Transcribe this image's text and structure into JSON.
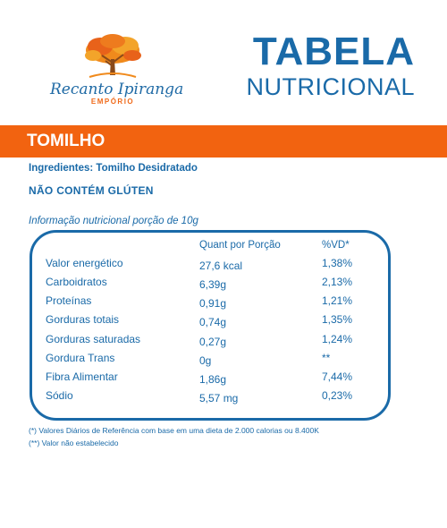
{
  "brand": {
    "name": "Recanto Ipiranga",
    "sub": "EMPÓRIO"
  },
  "header": {
    "title_line1": "TABELA",
    "title_line2": "NUTRICIONAL"
  },
  "product": {
    "name": "TOMILHO",
    "ingredients": "Ingredientes: Tomilho Desidratado",
    "gluten": "NÃO CONTÉM GLÚTEN"
  },
  "table": {
    "portion": "Informação nutricional porção de 10g",
    "col_amount": "Quant por Porção",
    "col_vd": "%VD*",
    "rows": [
      {
        "label": "Valor energético",
        "amount": "27,6 kcal",
        "vd": "1,38%"
      },
      {
        "label": "Carboidratos",
        "amount": "6,39g",
        "vd": "2,13%"
      },
      {
        "label": "Proteínas",
        "amount": "0,91g",
        "vd": "1,21%"
      },
      {
        "label": "Gorduras totais",
        "amount": "0,74g",
        "vd": "1,35%"
      },
      {
        "label": "Gorduras saturadas",
        "amount": "0,27g",
        "vd": "1,24%"
      },
      {
        "label": "Gordura Trans",
        "amount": "0g",
        "vd": "**"
      },
      {
        "label": "Fibra Alimentar",
        "amount": "1,86g",
        "vd": "7,44%"
      },
      {
        "label": "Sódio",
        "amount": "5,57 mg",
        "vd": "0,23%"
      }
    ]
  },
  "footnotes": {
    "note1": "(*) Valores Diários de Referência com base em uma dieta de 2.000 calorias ou 8.400K",
    "note2": "(**) Valor não estabelecido"
  },
  "colors": {
    "primary_blue": "#1a6aa8",
    "accent_orange": "#f26310"
  }
}
